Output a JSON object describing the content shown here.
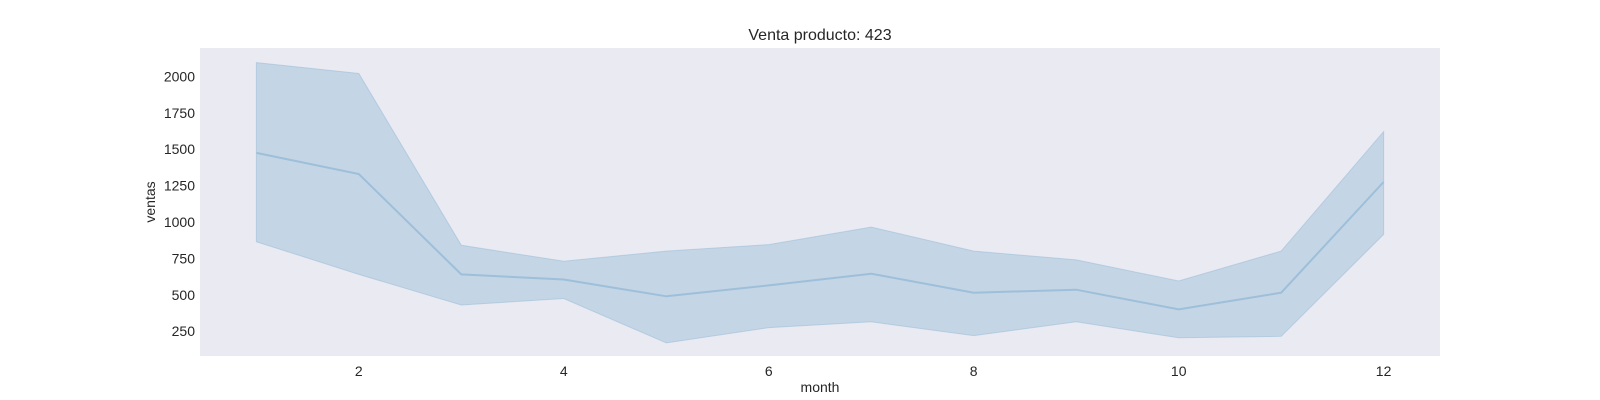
{
  "chart_data": {
    "type": "line",
    "title": "Venta producto: 423",
    "xlabel": "month",
    "ylabel": "ventas",
    "x": [
      1,
      2,
      3,
      4,
      5,
      6,
      7,
      8,
      9,
      10,
      11,
      12
    ],
    "series": [
      {
        "values": [
          1475,
          1330,
          640,
          605,
          490,
          565,
          645,
          515,
          535,
          400,
          515,
          1275
        ],
        "ci_lower": [
          865,
          640,
          430,
          475,
          170,
          275,
          315,
          220,
          315,
          205,
          215,
          915
        ],
        "ci_upper": [
          2095,
          2020,
          840,
          730,
          800,
          845,
          965,
          800,
          740,
          595,
          800,
          1620
        ]
      }
    ],
    "xticks": [
      2,
      4,
      6,
      8,
      10,
      12
    ],
    "yticks": [
      250,
      500,
      750,
      1000,
      1250,
      1500,
      1750,
      2000
    ],
    "xlim": [
      0.45,
      12.55
    ],
    "ylim": [
      80,
      2195
    ],
    "grid": false,
    "colors": {
      "plot_background": "#eaeaf2",
      "line": "#9ebfd9",
      "band": "#9ebfd9"
    }
  }
}
